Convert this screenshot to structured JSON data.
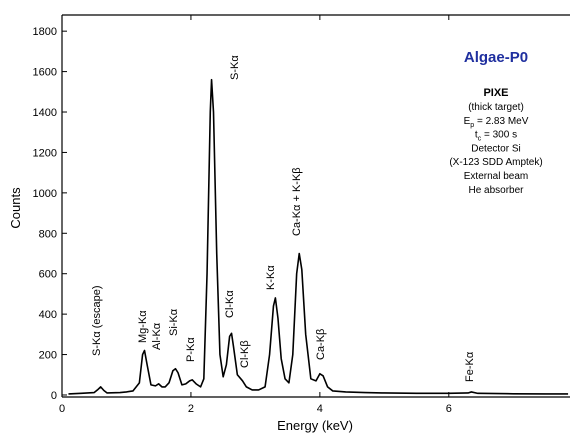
{
  "chart_data": {
    "type": "line",
    "xlabel": "Energy (keV)",
    "ylabel": "Counts",
    "xlim": [
      0,
      7.88
    ],
    "xticks": [
      0,
      2,
      4,
      6
    ],
    "ylim": [
      -10,
      1880
    ],
    "yticks": [
      0,
      200,
      400,
      600,
      800,
      1000,
      1200,
      1400,
      1600,
      1800
    ],
    "color": "#000000",
    "x": [
      0.1,
      0.3,
      0.5,
      0.55,
      0.6,
      0.65,
      0.7,
      0.9,
      1.0,
      1.1,
      1.2,
      1.25,
      1.28,
      1.32,
      1.38,
      1.45,
      1.5,
      1.55,
      1.6,
      1.66,
      1.72,
      1.76,
      1.8,
      1.86,
      1.92,
      1.98,
      2.02,
      2.08,
      2.15,
      2.2,
      2.25,
      2.3,
      2.32,
      2.35,
      2.4,
      2.45,
      2.5,
      2.55,
      2.6,
      2.63,
      2.66,
      2.72,
      2.8,
      2.86,
      2.95,
      3.05,
      3.15,
      3.22,
      3.28,
      3.31,
      3.35,
      3.4,
      3.46,
      3.52,
      3.58,
      3.64,
      3.68,
      3.72,
      3.78,
      3.86,
      3.94,
      4.0,
      4.05,
      4.12,
      4.2,
      4.4,
      4.7,
      5.0,
      5.5,
      6.0,
      6.3,
      6.35,
      6.45,
      7.0,
      7.5,
      7.85
    ],
    "values": [
      5,
      8,
      12,
      25,
      40,
      22,
      10,
      12,
      15,
      20,
      60,
      200,
      220,
      150,
      50,
      45,
      55,
      40,
      40,
      60,
      120,
      130,
      110,
      50,
      55,
      70,
      75,
      55,
      40,
      80,
      600,
      1400,
      1560,
      1400,
      700,
      200,
      90,
      150,
      290,
      305,
      240,
      100,
      70,
      40,
      25,
      25,
      40,
      200,
      440,
      480,
      380,
      180,
      80,
      60,
      200,
      600,
      700,
      620,
      300,
      80,
      70,
      105,
      95,
      40,
      20,
      15,
      12,
      10,
      8,
      8,
      10,
      15,
      8,
      6,
      5,
      5
    ],
    "annotations": [
      "S-Kα (escape)",
      "Mg-Kα",
      "Al-Kα",
      "Si-Kα",
      "P-Kα",
      "S-Kα",
      "Cl-Kα",
      "Cl-Kβ",
      "K-Kα",
      "Ca-Kα + K-Kβ",
      "Ca-Kβ",
      "Fe-Kα"
    ],
    "info": {
      "title": "Algae-P0",
      "method": "PIXE",
      "lines": [
        "(thick target)",
        [
          "E",
          "p",
          " = 2.83 MeV"
        ],
        [
          "t",
          "c",
          " = 300 s"
        ],
        "Detector Si",
        "(X-123 SDD Amptek)",
        "External beam",
        "He absorber"
      ]
    }
  }
}
